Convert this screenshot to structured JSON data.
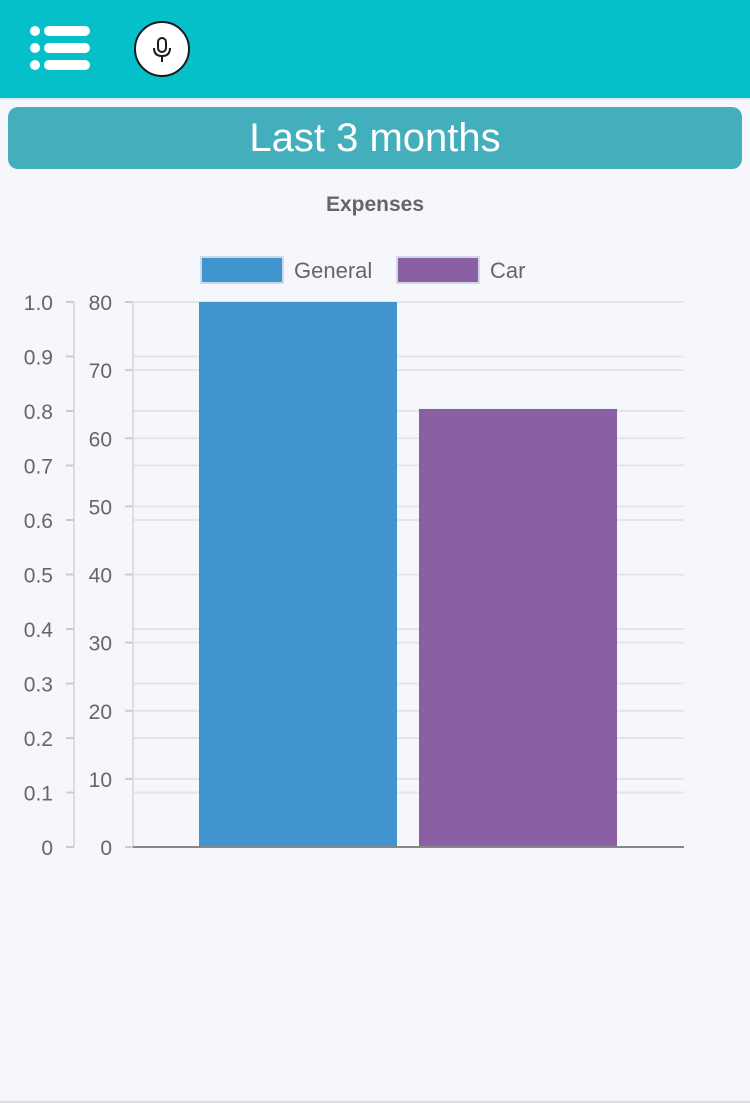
{
  "header": {
    "menu_icon": "menu-list-icon",
    "mic_icon": "microphone-icon"
  },
  "period": {
    "label": "Last 3 months"
  },
  "chart_data": {
    "type": "bar",
    "title": "Expenses",
    "series": [
      {
        "name": "General",
        "value": 80,
        "color": "#4195cf"
      },
      {
        "name": "Car",
        "value": 64.3,
        "color": "#8b5fa3"
      }
    ],
    "y_axis_left": {
      "ticks": [
        "0",
        "0.1",
        "0.2",
        "0.3",
        "0.4",
        "0.5",
        "0.6",
        "0.7",
        "0.8",
        "0.9",
        "1.0"
      ],
      "ylim": [
        0,
        1
      ]
    },
    "y_axis_right": {
      "ticks": [
        "0",
        "10",
        "20",
        "30",
        "40",
        "50",
        "60",
        "70",
        "80"
      ],
      "ylim": [
        0,
        80
      ]
    },
    "grid": true,
    "legend_position": "top"
  }
}
